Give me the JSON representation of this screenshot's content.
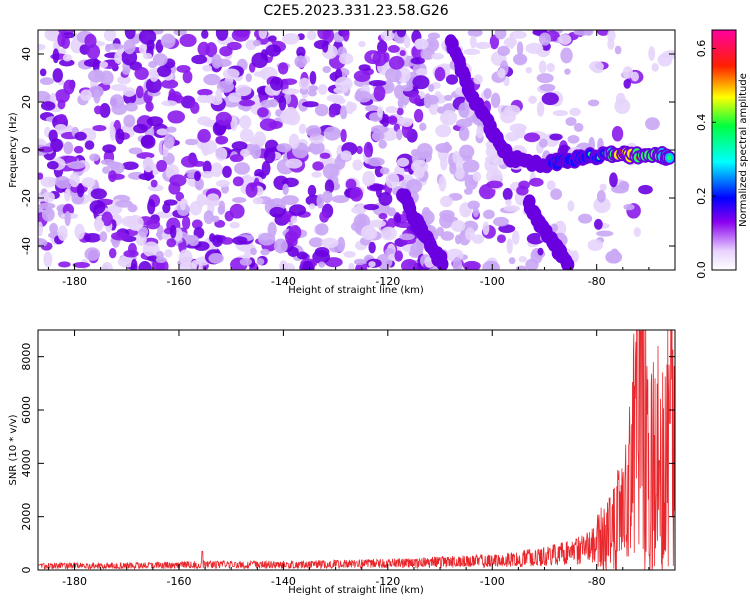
{
  "title": "C2E5.2023.331.23.58.G26",
  "colors": {
    "snr_line": "#e8262b",
    "background": "#ffffff",
    "colormap": [
      "#ffffff",
      "#7a00e6",
      "#0000ff",
      "#00ffff",
      "#00ff00",
      "#ffff00",
      "#ff0000",
      "#ff00aa"
    ]
  },
  "chart_data": [
    {
      "type": "heatmap",
      "xlabel": "Height of straight line (km)",
      "ylabel": "Frequency (Hz)",
      "xlim": [
        -187,
        -65
      ],
      "ylim": [
        -50,
        50
      ],
      "xticks": [
        -180,
        -160,
        -140,
        -120,
        -100,
        -80
      ],
      "yticks": [
        -40,
        -20,
        0,
        20,
        40
      ],
      "colorbar": {
        "label": "Normalized spectral amplitude",
        "range": [
          0,
          0.65
        ],
        "ticks": [
          "0.0",
          "0.2",
          "0.4",
          "0.6"
        ]
      },
      "features": [
        {
          "name": "signal_track",
          "x": [
            -108,
            -106,
            -104,
            -101,
            -99,
            -97,
            -95,
            -90,
            -86,
            -82,
            -78,
            -75,
            -72,
            -68,
            -66
          ],
          "y": [
            45,
            34,
            23,
            12,
            4,
            -3,
            -4,
            -6,
            -4,
            -3,
            -2,
            -2,
            -2,
            -2,
            -3
          ],
          "amp": [
            0.25,
            0.25,
            0.25,
            0.22,
            0.2,
            0.25,
            0.2,
            0.25,
            0.3,
            0.3,
            0.32,
            0.55,
            0.45,
            0.4,
            0.35
          ]
        },
        {
          "name": "weak_diagonal",
          "x": [
            -117,
            -115,
            -113,
            -111,
            -109
          ],
          "y": [
            -18,
            -28,
            -35,
            -42,
            -49
          ]
        },
        {
          "name": "faint_diagonal",
          "x": [
            -93,
            -91,
            -89,
            -87,
            -85
          ],
          "y": [
            -22,
            -30,
            -37,
            -43,
            -49
          ]
        }
      ]
    },
    {
      "type": "line",
      "xlabel": "Height of straight line (km)",
      "ylabel": "SNR (10 * v/v)",
      "xlim": [
        -187,
        -65
      ],
      "ylim": [
        0,
        9000
      ],
      "xticks": [
        -180,
        -160,
        -140,
        -120,
        -100,
        -80
      ],
      "yticks": [
        0,
        2000,
        4000,
        6000,
        8000
      ],
      "series": [
        {
          "profile": [
            {
              "x": -187,
              "y": 150
            },
            {
              "x": -180,
              "y": 160
            },
            {
              "x": -170,
              "y": 170
            },
            {
              "x": -160,
              "y": 180
            },
            {
              "x": -155,
              "y": 200
            },
            {
              "x": -140,
              "y": 200
            },
            {
              "x": -130,
              "y": 220
            },
            {
              "x": -120,
              "y": 250
            },
            {
              "x": -110,
              "y": 300
            },
            {
              "x": -100,
              "y": 350
            },
            {
              "x": -95,
              "y": 420
            },
            {
              "x": -90,
              "y": 520
            },
            {
              "x": -85,
              "y": 650
            },
            {
              "x": -82,
              "y": 800
            },
            {
              "x": -80,
              "y": 1000
            },
            {
              "x": -78,
              "y": 1300
            },
            {
              "x": -76,
              "y": 1800
            },
            {
              "x": -74,
              "y": 2800
            },
            {
              "x": -73,
              "y": 4000
            },
            {
              "x": -72,
              "y": 6500
            },
            {
              "x": -71.5,
              "y": 8800
            },
            {
              "x": -71,
              "y": 6000
            },
            {
              "x": -70,
              "y": 3500
            },
            {
              "x": -69,
              "y": 3800
            },
            {
              "x": -68,
              "y": 4200
            },
            {
              "x": -67,
              "y": 3500
            },
            {
              "x": -66,
              "y": 5400
            },
            {
              "x": -65,
              "y": 4500
            }
          ],
          "spikes": [
            {
              "x": -155.5,
              "y": 700
            },
            {
              "x": -89,
              "y": 800
            },
            {
              "x": -83,
              "y": 1000
            },
            {
              "x": -71.5,
              "y": 8950
            },
            {
              "x": -66,
              "y": 5500
            },
            {
              "x": -68,
              "y": 4100
            }
          ]
        }
      ]
    }
  ]
}
